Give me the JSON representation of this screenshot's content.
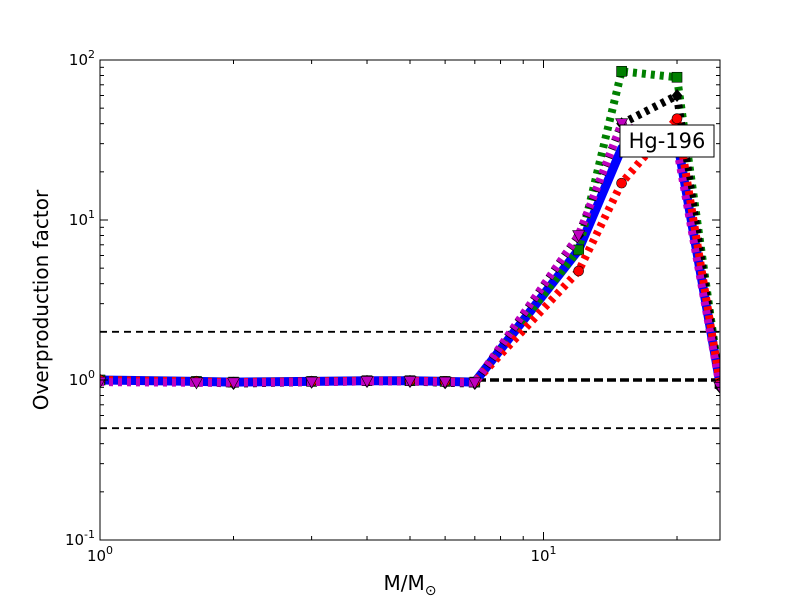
{
  "chart_data": {
    "type": "line",
    "xlabel": "M/M",
    "xlabel_subscript": "⊙",
    "ylabel": "Overproduction factor",
    "x_scale": "log",
    "y_scale": "log",
    "xlim": [
      1,
      25
    ],
    "ylim": [
      0.1,
      100
    ],
    "x_ticks": [
      {
        "value": 1,
        "base": "10",
        "exp": "0"
      },
      {
        "value": 10,
        "base": "10",
        "exp": "1"
      }
    ],
    "y_ticks": [
      {
        "value": 0.1,
        "base": "10",
        "exp": "-1"
      },
      {
        "value": 1,
        "base": "10",
        "exp": "0"
      },
      {
        "value": 10,
        "base": "10",
        "exp": "1"
      },
      {
        "value": 100,
        "base": "10",
        "exp": "2"
      }
    ],
    "grid": false,
    "annotation": "Hg-196",
    "reference_lines": [
      {
        "y": 2.0,
        "style": "dashed"
      },
      {
        "y": 1.0,
        "style": "dashed-thick"
      },
      {
        "y": 0.5,
        "style": "dashed"
      }
    ],
    "series": [
      {
        "color": "#0000ff",
        "linestyle": "solid",
        "marker": "none",
        "x": [
          1,
          1.65,
          2,
          3,
          4,
          5,
          6,
          7,
          12,
          15,
          20,
          25
        ],
        "y": [
          1.0,
          0.98,
          0.97,
          0.98,
          0.99,
          0.99,
          0.98,
          0.97,
          6.5,
          28,
          32,
          0.95
        ]
      },
      {
        "color": "#008000",
        "linestyle": "dotted",
        "marker": "square",
        "x": [
          1,
          1.65,
          2,
          3,
          4,
          5,
          6,
          7,
          12,
          15,
          20,
          25
        ],
        "y": [
          1.0,
          0.98,
          0.97,
          0.98,
          0.99,
          0.99,
          0.98,
          0.97,
          6.5,
          85,
          78,
          0.95
        ]
      },
      {
        "color": "#000000",
        "linestyle": "dotted",
        "marker": "diamond",
        "x": [
          1,
          1.65,
          2,
          3,
          4,
          5,
          6,
          7,
          12,
          15,
          20,
          25
        ],
        "y": [
          1.0,
          0.97,
          0.95,
          0.97,
          0.98,
          0.98,
          0.96,
          0.95,
          8.0,
          40,
          60,
          0.9
        ]
      },
      {
        "color": "#ff0000",
        "linestyle": "dotted",
        "marker": "circle",
        "x": [
          1,
          1.65,
          2,
          3,
          4,
          5,
          6,
          7,
          12,
          15,
          20,
          25
        ],
        "y": [
          1.0,
          0.98,
          0.97,
          0.98,
          0.99,
          0.99,
          0.98,
          0.97,
          4.8,
          17,
          43,
          0.95
        ]
      },
      {
        "color": "#bf00bf",
        "linestyle": "dotted",
        "marker": "triangle-down",
        "x": [
          1,
          1.65,
          2,
          3,
          4,
          5,
          6,
          7,
          12,
          15,
          20,
          25
        ],
        "y": [
          0.97,
          0.96,
          0.96,
          0.97,
          0.98,
          0.98,
          0.97,
          0.96,
          8.0,
          40,
          28,
          0.9
        ]
      }
    ]
  }
}
